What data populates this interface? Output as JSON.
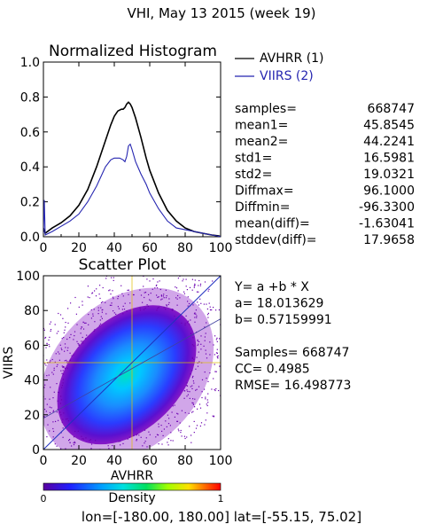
{
  "page_title": "VHI,  May 13 2015 (week 19)",
  "footer": "lon=[-180.00, 180.00] lat=[-55.15, 75.02]",
  "chart_data": [
    {
      "type": "line",
      "title": "Normalized Histogram",
      "xlim": [
        0,
        100
      ],
      "ylim": [
        0,
        1.0
      ],
      "x_ticks": [
        "0",
        "20",
        "40",
        "60",
        "80",
        "100"
      ],
      "y_ticks": [
        "0.0",
        "0.2",
        "0.4",
        "0.6",
        "0.8",
        "1.0"
      ],
      "series": [
        {
          "name": "AVHRR (1)",
          "color": "#000000",
          "x": [
            0,
            1,
            5,
            10,
            15,
            20,
            25,
            30,
            35,
            38,
            40,
            42,
            44,
            45,
            46,
            47,
            48,
            49,
            50,
            52,
            55,
            58,
            60,
            65,
            70,
            75,
            80,
            85,
            90,
            95,
            99,
            100
          ],
          "y": [
            0.05,
            0.02,
            0.05,
            0.08,
            0.12,
            0.18,
            0.27,
            0.4,
            0.55,
            0.64,
            0.69,
            0.72,
            0.73,
            0.73,
            0.74,
            0.76,
            0.77,
            0.76,
            0.74,
            0.68,
            0.57,
            0.45,
            0.38,
            0.25,
            0.15,
            0.09,
            0.05,
            0.03,
            0.02,
            0.01,
            0.005,
            0.0
          ]
        },
        {
          "name": "VIIRS (2)",
          "color": "#2525b0",
          "x": [
            0,
            0.5,
            1,
            5,
            10,
            15,
            20,
            25,
            30,
            35,
            38,
            40,
            43,
            45,
            46,
            47,
            48,
            49,
            50,
            52,
            55,
            58,
            60,
            65,
            70,
            75,
            80,
            85,
            90,
            95,
            98,
            100
          ],
          "y": [
            0.02,
            0.21,
            0.01,
            0.03,
            0.06,
            0.09,
            0.13,
            0.2,
            0.29,
            0.4,
            0.44,
            0.45,
            0.45,
            0.44,
            0.43,
            0.46,
            0.52,
            0.53,
            0.5,
            0.43,
            0.36,
            0.3,
            0.25,
            0.16,
            0.09,
            0.05,
            0.04,
            0.03,
            0.02,
            0.01,
            0.005,
            0.0
          ]
        }
      ],
      "stats": [
        {
          "label": "samples=",
          "value": "668747"
        },
        {
          "label": "mean1=",
          "value": "45.8545"
        },
        {
          "label": "mean2=",
          "value": "44.2241"
        },
        {
          "label": "std1=",
          "value": "16.5981"
        },
        {
          "label": "std2=",
          "value": "19.0321"
        },
        {
          "label": "Diffmax=",
          "value": "96.1000"
        },
        {
          "label": "Diffmin=",
          "value": "-96.3300"
        },
        {
          "label": "mean(diff)=",
          "value": "-1.63041"
        },
        {
          "label": "stddev(diff)=",
          "value": "17.9658"
        }
      ]
    },
    {
      "type": "scatter",
      "title": "Scatter Plot",
      "xlabel": "AVHRR",
      "ylabel": "VIIRS",
      "xlim": [
        0,
        100
      ],
      "ylim": [
        0,
        100
      ],
      "x_ticks": [
        "0",
        "20",
        "40",
        "60",
        "80",
        "100"
      ],
      "y_ticks": [
        "0",
        "20",
        "40",
        "60",
        "80",
        "100"
      ],
      "density_center": [
        47,
        43
      ],
      "regression": {
        "a": 18.013629,
        "b": 0.57159991
      },
      "stats_lines": [
        "Y= a +b * X",
        "a= 18.013629",
        "b= 0.57159991",
        "",
        "Samples= 668747",
        "CC=  0.4985",
        "RMSE= 16.498773"
      ],
      "colorbar": {
        "label": "Density",
        "min_label": "0",
        "max_label": "1",
        "colors": [
          "#5a00a0",
          "#2020ff",
          "#00a0ff",
          "#00e0e0",
          "#00e060",
          "#a0ff00",
          "#ffe000",
          "#ff6000",
          "#ff0000"
        ]
      }
    }
  ]
}
